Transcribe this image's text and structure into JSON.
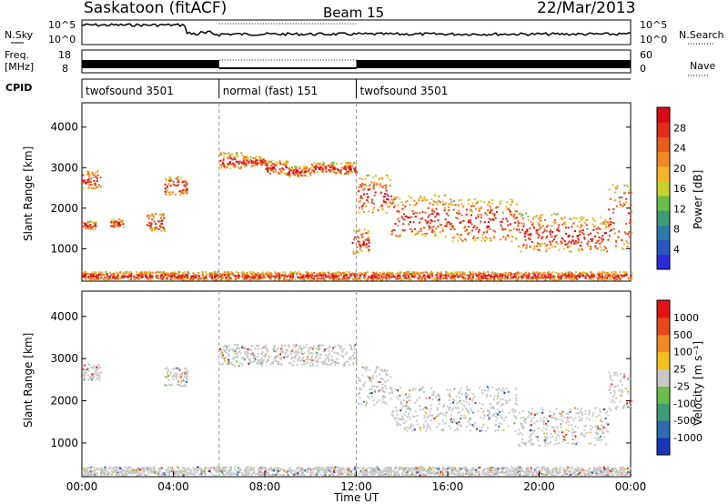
{
  "header": {
    "station": "Saskatoon (fitACF)",
    "beam": "Beam 15",
    "date": "22/Mar/2013"
  },
  "small_panels": {
    "nsky_label": "N.Sky",
    "nsky_ticks": [
      "10^5",
      "10^0"
    ],
    "nsearch_label": "N.Search",
    "freq_label_1": "Freq.",
    "freq_label_2": "[MHz]",
    "freq_ticks": [
      "18",
      "8"
    ],
    "nave_ticks": [
      "60",
      "0"
    ],
    "nave_label": "Nave",
    "cpid_label": "CPID",
    "cpid_segments": [
      {
        "start": 0,
        "end": 6,
        "label": "twofsound 3501"
      },
      {
        "start": 6,
        "end": 12,
        "label": "normal (fast) 151"
      },
      {
        "start": 12,
        "end": 24,
        "label": "twofsound 3501"
      }
    ]
  },
  "chart_data": [
    {
      "type": "heatmap",
      "name": "power",
      "ylabel": "Slant Range [km]",
      "ylim": [
        200,
        4600
      ],
      "y_ticks": [
        "1000",
        "2000",
        "3000",
        "4000"
      ],
      "colorbar_label": "Power [dB]",
      "colorbar_ticks": [
        "4",
        "8",
        "12",
        "16",
        "20",
        "24",
        "28"
      ],
      "colorbar_colors": [
        "#2a2ad8",
        "#2b55c0",
        "#2f7ba8",
        "#3f9a78",
        "#6cbc4c",
        "#c8d22e",
        "#f2b42a",
        "#f08a22",
        "#e85a1e",
        "#e02c1a",
        "#d80a14"
      ],
      "scatter_ranges": [
        {
          "start": 0.0,
          "end": 0.6,
          "lo": 1500,
          "hi": 1700
        },
        {
          "start": 0.0,
          "end": 0.8,
          "lo": 2500,
          "hi": 2950
        },
        {
          "start": 1.2,
          "end": 1.8,
          "lo": 1550,
          "hi": 1750
        },
        {
          "start": 2.8,
          "end": 3.6,
          "lo": 1450,
          "hi": 1900
        },
        {
          "start": 3.6,
          "end": 4.6,
          "lo": 2350,
          "hi": 2800
        },
        {
          "start": 6.0,
          "end": 7.0,
          "lo": 3000,
          "hi": 3400
        },
        {
          "start": 7.0,
          "end": 8.0,
          "lo": 3050,
          "hi": 3300
        },
        {
          "start": 8.0,
          "end": 9.0,
          "lo": 2850,
          "hi": 3200
        },
        {
          "start": 9.0,
          "end": 10.0,
          "lo": 2800,
          "hi": 3050
        },
        {
          "start": 10.0,
          "end": 11.0,
          "lo": 2900,
          "hi": 3150
        },
        {
          "start": 11.0,
          "end": 12.0,
          "lo": 2850,
          "hi": 3150
        },
        {
          "start": 11.8,
          "end": 12.6,
          "lo": 900,
          "hi": 1500
        },
        {
          "start": 12.0,
          "end": 13.5,
          "lo": 1900,
          "hi": 2850
        },
        {
          "start": 13.5,
          "end": 16.0,
          "lo": 1300,
          "hi": 2350
        },
        {
          "start": 16.0,
          "end": 19.0,
          "lo": 1200,
          "hi": 2250
        },
        {
          "start": 19.0,
          "end": 21.0,
          "lo": 950,
          "hi": 1900
        },
        {
          "start": 21.0,
          "end": 23.0,
          "lo": 950,
          "hi": 1800
        },
        {
          "start": 23.0,
          "end": 24.0,
          "lo": 1000,
          "hi": 2700
        },
        {
          "start": 0.0,
          "end": 24.0,
          "lo": 250,
          "hi": 450
        }
      ]
    },
    {
      "type": "heatmap",
      "name": "velocity",
      "ylabel": "Slant Range [km]",
      "ylim": [
        200,
        4600
      ],
      "y_ticks": [
        "1000",
        "2000",
        "3000",
        "4000"
      ],
      "x_ticks": [
        "00:00",
        "04:00",
        "08:00",
        "12:00",
        "16:00",
        "20:00",
        "00:00"
      ],
      "xlabel": "Time UT",
      "colorbar_label": "Velocity [m s⁻¹]",
      "colorbar_ticks": [
        "1000",
        "500",
        "100",
        "25",
        "-25",
        "-100",
        "-500",
        "-1000"
      ],
      "colorbar_colors": [
        "#1a36b8",
        "#2e69b2",
        "#3f9a78",
        "#6cbc4c",
        "#c8c8c8",
        "#f2c020",
        "#f08a22",
        "#e8461e",
        "#e01414"
      ],
      "scatter_ranges": [
        {
          "start": 0.0,
          "end": 0.8,
          "lo": 2500,
          "hi": 2900
        },
        {
          "start": 3.6,
          "end": 4.6,
          "lo": 2350,
          "hi": 2800
        },
        {
          "start": 6.0,
          "end": 12.0,
          "lo": 2850,
          "hi": 3350
        },
        {
          "start": 12.0,
          "end": 13.5,
          "lo": 1900,
          "hi": 2850
        },
        {
          "start": 13.5,
          "end": 19.0,
          "lo": 1300,
          "hi": 2350
        },
        {
          "start": 19.0,
          "end": 23.0,
          "lo": 950,
          "hi": 1850
        },
        {
          "start": 23.0,
          "end": 24.0,
          "lo": 1800,
          "hi": 2700
        },
        {
          "start": 0.0,
          "end": 24.0,
          "lo": 250,
          "hi": 450
        }
      ]
    }
  ]
}
